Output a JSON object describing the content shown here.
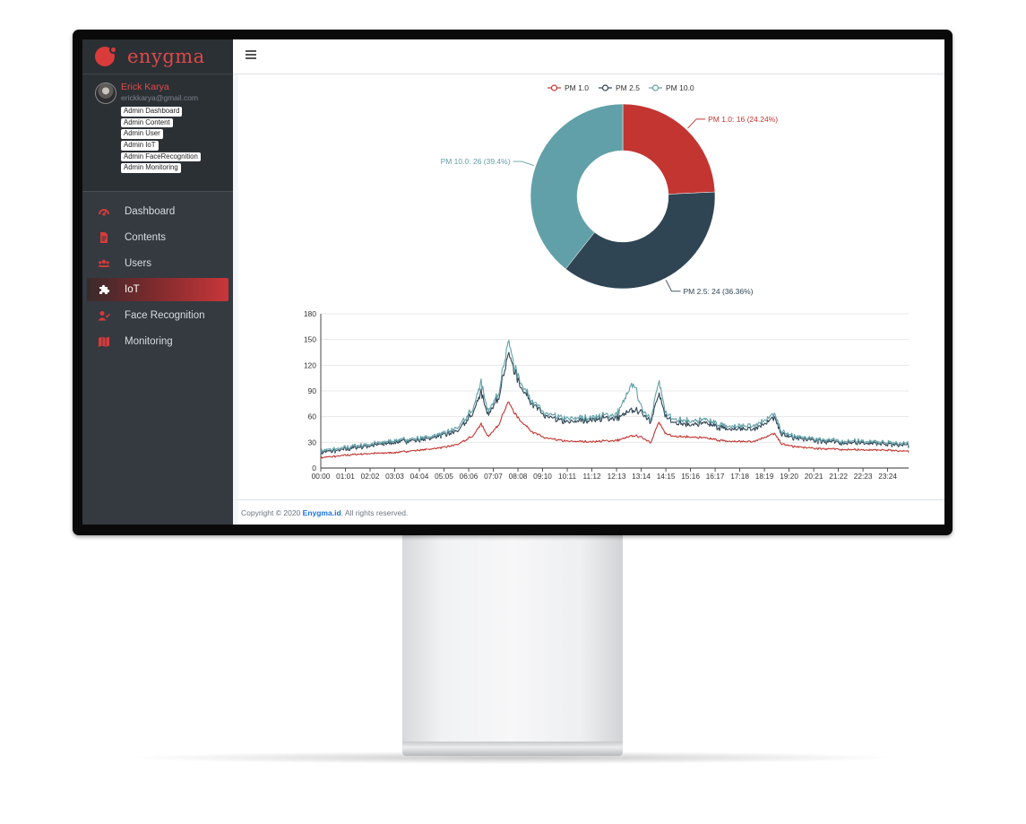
{
  "brand": {
    "name": "enygma"
  },
  "user": {
    "name": "Erick Karya",
    "email": "erickkarya@gmail.com",
    "roles": [
      "Admin Dashboard",
      "Admin Content",
      "Admin User",
      "Admin IoT",
      "Admin FaceRecognition",
      "Admin Monitoring"
    ]
  },
  "nav": {
    "items": [
      {
        "label": "Dashboard",
        "icon": "dashboard-gauge-icon"
      },
      {
        "label": "Contents",
        "icon": "file-icon"
      },
      {
        "label": "Users",
        "icon": "users-icon"
      },
      {
        "label": "IoT",
        "icon": "puzzle-icon",
        "active": true
      },
      {
        "label": "Face Recognition",
        "icon": "user-check-icon"
      },
      {
        "label": "Monitoring",
        "icon": "map-icon"
      }
    ]
  },
  "footer": {
    "prefix": "Copyright © 2020",
    "link": "Enygma.id",
    "suffix": ". All rights reserved."
  },
  "colors": {
    "accent": "#d93a3a",
    "pm1": "#c23531",
    "pm25": "#2f4554",
    "pm10": "#61a0a8",
    "sidebar": "#343a40"
  },
  "chart_data": [
    {
      "type": "pie",
      "variant": "donut",
      "legend": [
        "PM 1.0",
        "PM 2.5",
        "PM 10.0"
      ],
      "legend_position": "top-center",
      "slices": [
        {
          "name": "PM 1.0",
          "value": 16,
          "percent": 24.24,
          "label": "PM 1.0: 16 (24.24%)"
        },
        {
          "name": "PM 2.5",
          "value": 24,
          "percent": 36.36,
          "label": "PM 2.5: 24 (36.36%)"
        },
        {
          "name": "PM 10.0",
          "value": 26,
          "percent": 39.4,
          "label": "PM 10.0: 26 (39.4%)"
        }
      ]
    },
    {
      "type": "line",
      "ylim": [
        0,
        180
      ],
      "yticks": [
        0,
        30,
        60,
        90,
        120,
        150,
        180
      ],
      "grid": true,
      "x_ticks": [
        "00:00",
        "01:01",
        "02:02",
        "03:03",
        "04:04",
        "05:05",
        "06:06",
        "07:07",
        "08:08",
        "09:10",
        "10:11",
        "11:12",
        "12:13",
        "13:14",
        "14:15",
        "15:16",
        "16:17",
        "17:18",
        "18:19",
        "19:20",
        "20:21",
        "21:22",
        "22:23",
        "23:24"
      ],
      "series": [
        {
          "name": "PM 1.0",
          "keypoints": [
            [
              0,
              12
            ],
            [
              1,
              15
            ],
            [
              2,
              17
            ],
            [
              3,
              18
            ],
            [
              4,
              21
            ],
            [
              5,
              24
            ],
            [
              5.6,
              28
            ],
            [
              6.2,
              38
            ],
            [
              6.5,
              52
            ],
            [
              6.8,
              36
            ],
            [
              7.2,
              50
            ],
            [
              7.6,
              78
            ],
            [
              7.85,
              65
            ],
            [
              8.1,
              55
            ],
            [
              8.6,
              42
            ],
            [
              9.1,
              35
            ],
            [
              10,
              31
            ],
            [
              11,
              31
            ],
            [
              12,
              32
            ],
            [
              12.7,
              38
            ],
            [
              13,
              36
            ],
            [
              13.4,
              30
            ],
            [
              13.7,
              53
            ],
            [
              14,
              40
            ],
            [
              14.5,
              37
            ],
            [
              15,
              36
            ],
            [
              15.6,
              35
            ],
            [
              16.5,
              31
            ],
            [
              17.5,
              31
            ],
            [
              18.4,
              40
            ],
            [
              18.7,
              28
            ],
            [
              19.2,
              25
            ],
            [
              20,
              23
            ],
            [
              21,
              22
            ],
            [
              22,
              21
            ],
            [
              23,
              21
            ],
            [
              24,
              19
            ]
          ]
        },
        {
          "name": "PM 2.5",
          "keypoints": [
            [
              0,
              18
            ],
            [
              1,
              22
            ],
            [
              2,
              26
            ],
            [
              3,
              30
            ],
            [
              4,
              33
            ],
            [
              5,
              38
            ],
            [
              5.6,
              44
            ],
            [
              6.2,
              65
            ],
            [
              6.5,
              90
            ],
            [
              6.8,
              60
            ],
            [
              7.2,
              82
            ],
            [
              7.6,
              135
            ],
            [
              7.85,
              115
            ],
            [
              8.1,
              95
            ],
            [
              8.6,
              75
            ],
            [
              9.1,
              60
            ],
            [
              10,
              53
            ],
            [
              11,
              57
            ],
            [
              12,
              58
            ],
            [
              12.7,
              68
            ],
            [
              13,
              65
            ],
            [
              13.4,
              55
            ],
            [
              13.7,
              85
            ],
            [
              14,
              60
            ],
            [
              14.5,
              53
            ],
            [
              15,
              50
            ],
            [
              15.6,
              52
            ],
            [
              16.5,
              45
            ],
            [
              17.5,
              46
            ],
            [
              18.4,
              58
            ],
            [
              18.7,
              39
            ],
            [
              19.2,
              35
            ],
            [
              20,
              32
            ],
            [
              21,
              30
            ],
            [
              22,
              29
            ],
            [
              23,
              28
            ],
            [
              24,
              26
            ]
          ]
        },
        {
          "name": "PM 10.0",
          "keypoints": [
            [
              0,
              20
            ],
            [
              1,
              24
            ],
            [
              2,
              28
            ],
            [
              3,
              32
            ],
            [
              4,
              35
            ],
            [
              5,
              40
            ],
            [
              5.6,
              48
            ],
            [
              6.2,
              70
            ],
            [
              6.5,
              102
            ],
            [
              6.8,
              64
            ],
            [
              7.2,
              87
            ],
            [
              7.6,
              150
            ],
            [
              7.85,
              120
            ],
            [
              8.1,
              100
            ],
            [
              8.6,
              78
            ],
            [
              9.1,
              63
            ],
            [
              10,
              57
            ],
            [
              11,
              60
            ],
            [
              12,
              62
            ],
            [
              12.7,
              100
            ],
            [
              13,
              70
            ],
            [
              13.4,
              58
            ],
            [
              13.7,
              100
            ],
            [
              14,
              64
            ],
            [
              14.5,
              57
            ],
            [
              15,
              54
            ],
            [
              15.6,
              56
            ],
            [
              16.5,
              48
            ],
            [
              17.5,
              50
            ],
            [
              18.4,
              62
            ],
            [
              18.7,
              42
            ],
            [
              19.2,
              37
            ],
            [
              20,
              34
            ],
            [
              21,
              32
            ],
            [
              22,
              31
            ],
            [
              23,
              30
            ],
            [
              24,
              28
            ]
          ]
        }
      ]
    }
  ]
}
